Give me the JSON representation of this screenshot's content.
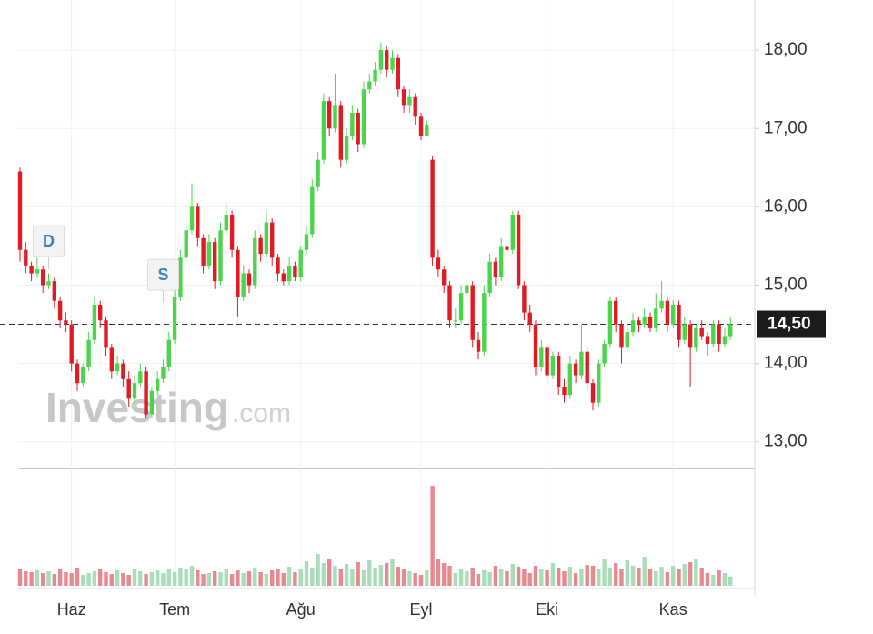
{
  "chart_data": {
    "type": "candlestick",
    "categories": [
      null,
      null,
      null,
      null,
      null,
      null,
      null,
      null,
      null,
      "Haz",
      null,
      null,
      null,
      null,
      null,
      null,
      null,
      null,
      null,
      null,
      null,
      null,
      null,
      null,
      null,
      null,
      null,
      "Tem",
      null,
      null,
      null,
      null,
      null,
      null,
      null,
      null,
      null,
      null,
      null,
      null,
      null,
      null,
      null,
      null,
      null,
      null,
      null,
      null,
      null,
      "Ağu",
      null,
      null,
      null,
      null,
      null,
      null,
      null,
      null,
      null,
      null,
      null,
      null,
      null,
      null,
      null,
      null,
      null,
      null,
      null,
      null,
      "Eyl",
      null,
      null,
      null,
      null,
      null,
      null,
      null,
      null,
      null,
      null,
      null,
      null,
      null,
      null,
      null,
      null,
      null,
      null,
      null,
      null,
      null,
      "Eki",
      null,
      null,
      null,
      null,
      null,
      null,
      null,
      null,
      null,
      null,
      null,
      null,
      null,
      null,
      null,
      null,
      null,
      null,
      null,
      null,
      null,
      "Kas",
      null,
      null,
      null,
      null,
      null,
      null,
      null,
      null,
      null,
      null
    ],
    "open": [
      16.45,
      15.45,
      15.25,
      15.15,
      15.2,
      15.0,
      15.05,
      14.8,
      14.55,
      14.5,
      14.0,
      13.75,
      13.95,
      14.3,
      14.75,
      14.55,
      14.2,
      13.9,
      14.0,
      13.8,
      13.55,
      13.75,
      13.9,
      13.35,
      13.65,
      13.8,
      13.95,
      14.3,
      14.85,
      15.35,
      15.7,
      16.0,
      15.6,
      15.25,
      15.55,
      15.05,
      15.7,
      15.9,
      15.45,
      14.85,
      15.15,
      15.0,
      15.6,
      15.4,
      15.8,
      15.35,
      15.15,
      15.05,
      15.25,
      15.1,
      15.45,
      15.65,
      16.25,
      16.6,
      17.35,
      17.0,
      17.3,
      16.6,
      16.9,
      17.2,
      16.8,
      17.5,
      17.6,
      17.75,
      18.0,
      17.75,
      17.9,
      17.5,
      17.3,
      17.4,
      17.15,
      16.9,
      16.6,
      15.35,
      15.2,
      15.0,
      14.55,
      14.55,
      14.9,
      15.0,
      14.3,
      14.15,
      14.9,
      15.3,
      15.1,
      15.5,
      15.45,
      15.9,
      15.0,
      14.65,
      14.5,
      13.95,
      14.2,
      13.85,
      14.1,
      13.7,
      13.6,
      14.0,
      13.85,
      14.15,
      13.75,
      13.5,
      14.0,
      14.25,
      14.8,
      14.5,
      14.2,
      14.4,
      14.55,
      14.5,
      14.6,
      14.45,
      14.7,
      14.8,
      14.5,
      14.75,
      14.3,
      14.5,
      14.2,
      14.45,
      14.35,
      14.25,
      14.5,
      14.25,
      14.35
    ],
    "high": [
      16.5,
      15.55,
      15.3,
      15.35,
      15.25,
      15.15,
      15.1,
      14.85,
      14.65,
      14.55,
      14.05,
      14.0,
      14.4,
      14.85,
      14.8,
      14.6,
      14.25,
      14.1,
      14.05,
      13.9,
      13.85,
      14.0,
      13.95,
      13.7,
      13.9,
      14.05,
      14.4,
      14.95,
      15.45,
      15.8,
      16.3,
      16.05,
      15.65,
      15.65,
      15.6,
      15.8,
      16.05,
      15.95,
      15.5,
      15.25,
      15.2,
      15.7,
      15.65,
      15.95,
      15.85,
      15.4,
      15.2,
      15.35,
      15.3,
      15.5,
      15.75,
      16.35,
      16.7,
      17.45,
      17.4,
      17.7,
      17.35,
      17.0,
      17.3,
      17.25,
      17.6,
      17.7,
      17.85,
      18.1,
      18.05,
      18.0,
      17.95,
      17.55,
      17.5,
      17.45,
      17.2,
      17.1,
      16.65,
      15.45,
      15.25,
      15.05,
      14.7,
      15.0,
      15.1,
      15.05,
      14.4,
      15.0,
      15.4,
      15.35,
      15.6,
      15.6,
      15.95,
      15.95,
      15.05,
      14.75,
      14.55,
      14.3,
      14.25,
      14.15,
      14.15,
      13.8,
      14.1,
      14.05,
      14.5,
      14.2,
      13.8,
      14.05,
      14.3,
      14.85,
      14.85,
      14.55,
      14.5,
      14.65,
      14.6,
      14.7,
      14.65,
      14.9,
      15.05,
      14.85,
      14.8,
      14.8,
      14.6,
      14.55,
      14.5,
      14.55,
      14.4,
      14.55,
      14.55,
      14.45,
      14.6
    ],
    "low": [
      15.3,
      15.15,
      15.05,
      15.1,
      14.9,
      14.95,
      14.7,
      14.45,
      14.4,
      13.9,
      13.65,
      13.7,
      13.9,
      14.25,
      14.45,
      14.1,
      13.8,
      13.85,
      13.7,
      13.45,
      13.5,
      13.7,
      13.3,
      13.3,
      13.6,
      13.75,
      13.9,
      14.25,
      14.8,
      15.3,
      15.65,
      15.5,
      15.15,
      15.2,
      14.95,
      15.0,
      15.65,
      15.35,
      14.6,
      14.8,
      14.9,
      14.95,
      15.3,
      15.35,
      15.25,
      15.05,
      15.0,
      15.0,
      15.05,
      15.05,
      15.4,
      15.6,
      16.2,
      16.55,
      16.9,
      16.95,
      16.5,
      16.55,
      16.85,
      16.7,
      16.75,
      17.45,
      17.55,
      17.7,
      17.65,
      17.7,
      17.4,
      17.2,
      17.2,
      17.05,
      16.85,
      16.9,
      15.25,
      15.1,
      14.9,
      14.45,
      14.45,
      14.5,
      14.8,
      14.2,
      14.05,
      14.1,
      14.85,
      15.0,
      15.05,
      15.35,
      15.4,
      14.95,
      14.55,
      14.4,
      13.85,
      13.9,
      13.75,
      13.8,
      13.6,
      13.5,
      13.55,
      13.75,
      13.8,
      13.65,
      13.4,
      13.45,
      13.95,
      14.2,
      14.4,
      14.0,
      14.15,
      14.35,
      14.4,
      14.45,
      14.4,
      14.4,
      14.65,
      14.4,
      14.45,
      14.2,
      14.25,
      13.7,
      14.15,
      14.3,
      14.1,
      14.2,
      14.15,
      14.2,
      14.3
    ],
    "close": [
      15.45,
      15.25,
      15.15,
      15.2,
      15.0,
      15.05,
      14.8,
      14.55,
      14.5,
      14.0,
      13.75,
      13.95,
      14.3,
      14.75,
      14.55,
      14.2,
      13.9,
      14.0,
      13.8,
      13.55,
      13.75,
      13.9,
      13.35,
      13.65,
      13.8,
      13.95,
      14.3,
      14.85,
      15.35,
      15.7,
      16.0,
      15.6,
      15.25,
      15.55,
      15.05,
      15.7,
      15.9,
      15.45,
      14.85,
      15.15,
      15.0,
      15.6,
      15.4,
      15.8,
      15.35,
      15.15,
      15.05,
      15.25,
      15.1,
      15.45,
      15.65,
      16.25,
      16.6,
      17.35,
      17.0,
      17.3,
      16.6,
      16.9,
      17.2,
      16.8,
      17.5,
      17.6,
      17.75,
      18.0,
      17.75,
      17.9,
      17.5,
      17.3,
      17.4,
      17.15,
      16.9,
      17.05,
      15.35,
      15.2,
      15.0,
      14.55,
      14.55,
      14.9,
      15.0,
      14.3,
      14.15,
      14.9,
      15.3,
      15.1,
      15.5,
      15.45,
      15.9,
      15.0,
      14.65,
      14.5,
      13.95,
      14.2,
      13.85,
      14.1,
      13.7,
      13.6,
      14.0,
      13.85,
      14.15,
      13.75,
      13.5,
      14.0,
      14.25,
      14.8,
      14.5,
      14.2,
      14.4,
      14.55,
      14.5,
      14.6,
      14.45,
      14.7,
      14.8,
      14.5,
      14.75,
      14.3,
      14.5,
      14.2,
      14.45,
      14.35,
      14.25,
      14.5,
      14.25,
      14.35,
      14.5
    ],
    "volume": [
      18,
      16,
      15,
      17,
      14,
      16,
      13,
      18,
      15,
      14,
      20,
      12,
      14,
      16,
      19,
      15,
      13,
      17,
      14,
      12,
      18,
      16,
      13,
      15,
      17,
      14,
      19,
      15,
      20,
      18,
      22,
      17,
      13,
      14,
      16,
      15,
      18,
      13,
      17,
      14,
      16,
      20,
      15,
      13,
      17,
      18,
      14,
      21,
      15,
      19,
      27,
      20,
      35,
      25,
      30,
      22,
      19,
      24,
      18,
      26,
      17,
      28,
      20,
      23,
      25,
      30,
      21,
      18,
      16,
      14,
      12,
      17,
      110,
      30,
      25,
      22,
      14,
      18,
      16,
      20,
      13,
      17,
      15,
      22,
      19,
      16,
      24,
      21,
      19,
      14,
      22,
      18,
      17,
      25,
      20,
      16,
      21,
      14,
      18,
      23,
      22,
      19,
      30,
      20,
      25,
      19,
      28,
      22,
      20,
      32,
      18,
      16,
      21,
      15,
      22,
      18,
      24,
      26,
      29,
      20,
      14,
      12,
      17,
      14,
      10
    ],
    "ylim": [
      12.66,
      18.64
    ],
    "yticks": [
      {
        "value": 13,
        "label": "13,00"
      },
      {
        "value": 14,
        "label": "14,00"
      },
      {
        "value": 15,
        "label": "15,00"
      },
      {
        "value": 16,
        "label": "16,00"
      },
      {
        "value": 17,
        "label": "17,00"
      },
      {
        "value": 18,
        "label": "18,00"
      }
    ],
    "last_price": {
      "value": 14.5,
      "label": "14,50"
    },
    "up_color": "#4cd44c",
    "down_color": "#e01b24",
    "volume_up_color": "#a9dcb9",
    "volume_down_color": "#e7898d",
    "grid": true,
    "annotations": [
      {
        "label": "D",
        "x": 5,
        "y": 15.55
      },
      {
        "label": "S",
        "x": 25,
        "y": 15.12
      }
    ],
    "watermark": {
      "brand": "Investing",
      "suffix": ".com"
    }
  }
}
